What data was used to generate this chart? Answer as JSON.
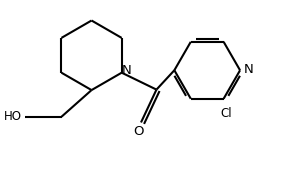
{
  "bg_color": "#ffffff",
  "bond_color": "#000000",
  "text_color": "#000000",
  "line_width": 1.5,
  "font_size": 8.5,
  "fig_width": 2.88,
  "fig_height": 1.85,
  "dpi": 100,
  "xlim": [
    0,
    5.8
  ],
  "ylim": [
    0,
    3.8
  ]
}
